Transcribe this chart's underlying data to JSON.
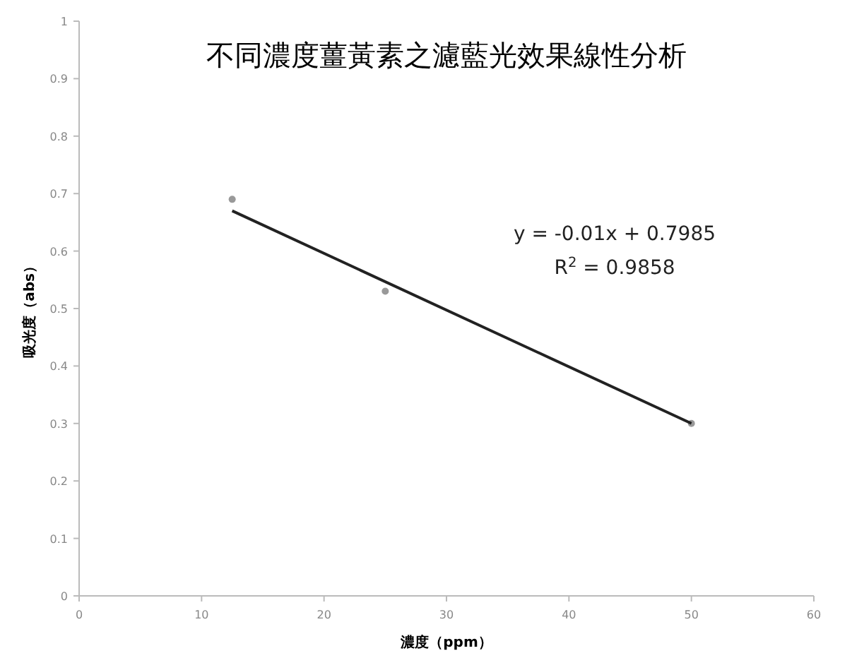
{
  "chart_data": {
    "type": "scatter",
    "title": "不同濃度薑黃素之濾藍光效果線性分析",
    "xlabel": "濃度（ppm）",
    "ylabel": "吸光度（abs）",
    "xlim": [
      0,
      60
    ],
    "xticks": [
      0,
      10,
      20,
      30,
      40,
      50,
      60
    ],
    "ylim": [
      0,
      1
    ],
    "yticks": [
      0,
      0.1,
      0.2,
      0.3,
      0.4,
      0.5,
      0.6,
      0.7,
      0.8,
      0.9,
      1
    ],
    "grid": false,
    "marker": "circle",
    "series": [
      {
        "color": "#999999",
        "x": [
          12.5,
          25,
          50
        ],
        "values": [
          0.69,
          0.53,
          0.3
        ]
      },
      {
        "type": "line",
        "color": "#222222",
        "x": [
          12.5,
          50
        ],
        "values": [
          0.67,
          0.3
        ],
        "line_style": "solid",
        "marker": "none"
      }
    ],
    "annotations": [
      "y = -0.01x + 0.7985",
      "R$^{2}$ = 0.9858"
    ]
  }
}
